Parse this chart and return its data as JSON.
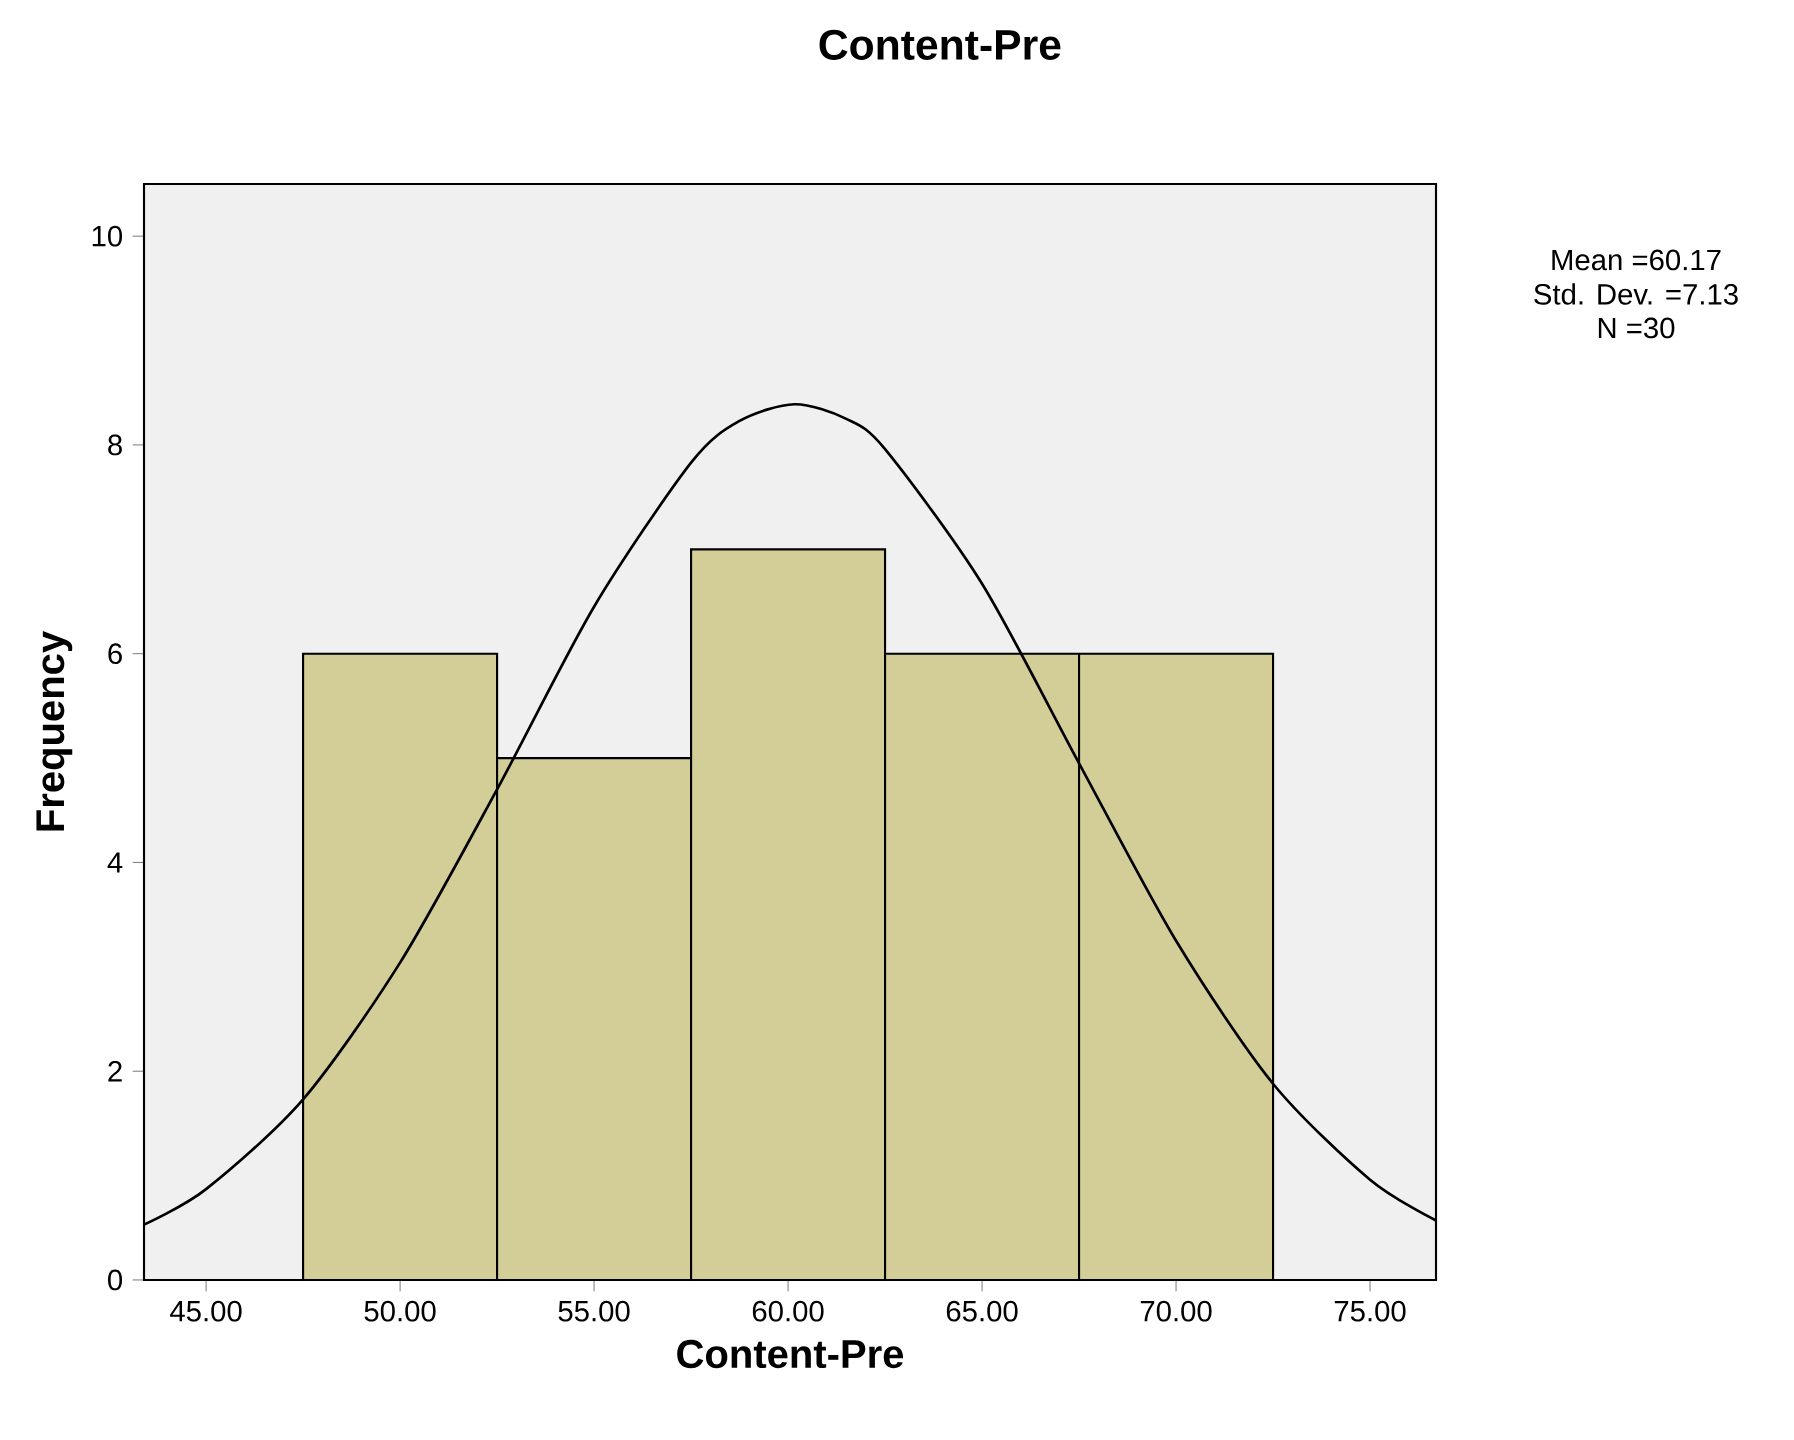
{
  "chart_data": {
    "type": "histogram",
    "title": "Content-Pre",
    "xlabel": "Content-Pre",
    "ylabel": "Frequency",
    "xlim": [
      43.4,
      76.7
    ],
    "ylim": [
      0,
      10.5
    ],
    "xticks": [
      {
        "value": 45,
        "label": "45.00"
      },
      {
        "value": 50,
        "label": "50.00"
      },
      {
        "value": 55,
        "label": "55.00"
      },
      {
        "value": 60,
        "label": "60.00"
      },
      {
        "value": 65,
        "label": "65.00"
      },
      {
        "value": 70,
        "label": "70.00"
      },
      {
        "value": 75,
        "label": "75.00"
      }
    ],
    "yticks": [
      0,
      2,
      4,
      6,
      8,
      10
    ],
    "grid": false,
    "series": [
      {
        "color": "#d3ce97",
        "bins": [
          47.5,
          52.5,
          57.5,
          62.5,
          67.5,
          72.5
        ],
        "values": [
          6,
          5,
          7,
          6,
          6
        ]
      },
      {
        "type": "line",
        "color": "#000000",
        "x": [
          43.4,
          45,
          47.5,
          50,
          52.5,
          55,
          57.5,
          58.75,
          60.17,
          61.5,
          62.5,
          65,
          67.5,
          70,
          72.5,
          75,
          76.7
        ],
        "values": [
          0.53,
          0.87,
          1.73,
          3.04,
          4.7,
          6.45,
          7.83,
          8.23,
          8.39,
          8.25,
          7.96,
          6.67,
          4.95,
          3.25,
          1.88,
          0.96,
          0.57
        ]
      }
    ],
    "annotations": [
      "Mean =60.17",
      "Std. Dev. =7.13",
      "N =30"
    ]
  }
}
